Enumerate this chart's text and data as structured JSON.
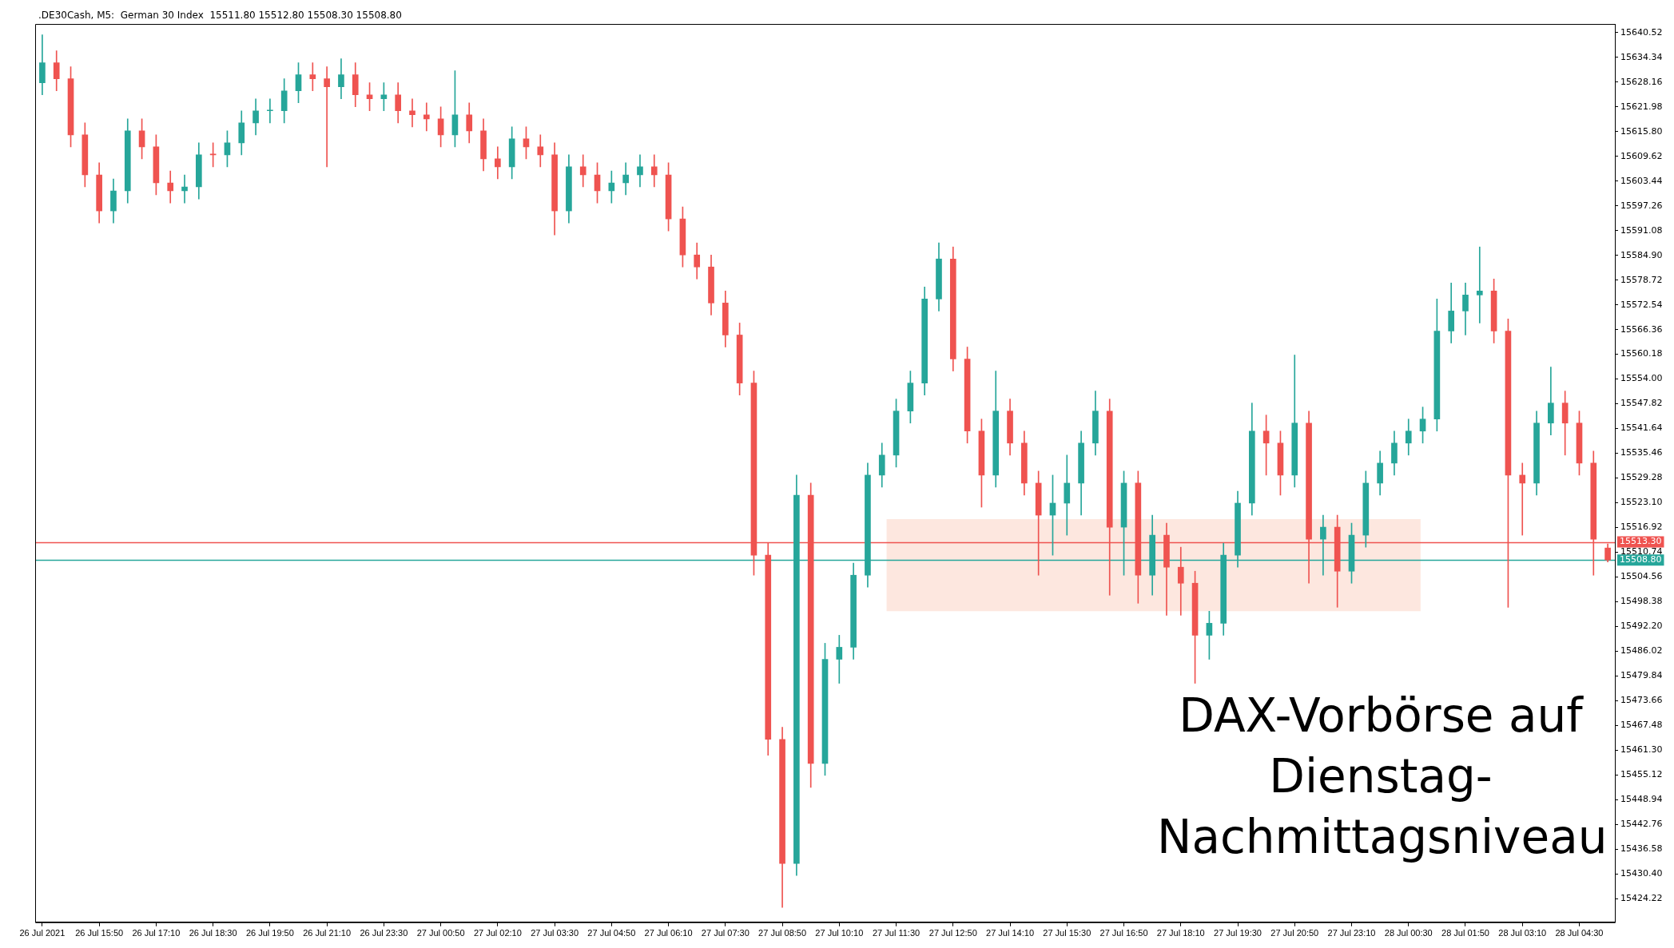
{
  "chart_data": {
    "type": "candlestick",
    "title": ".DE30Cash, M5:  German 30 Index  15511.80 15512.80 15508.30 15508.80",
    "annotations": [
      "DAX-Vorbörse auf Dienstag-Nachmittagsniveau"
    ],
    "categories": [
      "26 Jul 2021",
      null,
      null,
      null,
      "26 Jul 15:50",
      null,
      null,
      null,
      "26 Jul 17:10",
      null,
      null,
      null,
      "26 Jul 18:30",
      null,
      null,
      null,
      "26 Jul 19:50",
      null,
      null,
      null,
      "26 Jul 21:10",
      null,
      null,
      null,
      "26 Jul 23:30",
      null,
      null,
      null,
      "27 Jul 00:50",
      null,
      null,
      null,
      "27 Jul 02:10",
      null,
      null,
      null,
      "27 Jul 03:30",
      null,
      null,
      null,
      "27 Jul 04:50",
      null,
      null,
      null,
      "27 Jul 06:10",
      null,
      null,
      null,
      "27 Jul 07:30",
      null,
      null,
      null,
      "27 Jul 08:50",
      null,
      null,
      null,
      "27 Jul 10:10",
      null,
      null,
      null,
      "27 Jul 11:30",
      null,
      null,
      null,
      "27 Jul 12:50",
      null,
      null,
      null,
      "27 Jul 14:10",
      null,
      null,
      null,
      "27 Jul 15:30",
      null,
      null,
      null,
      "27 Jul 16:50",
      null,
      null,
      null,
      "27 Jul 18:10",
      null,
      null,
      null,
      "27 Jul 19:30",
      null,
      null,
      null,
      "27 Jul 20:50",
      null,
      null,
      null,
      "27 Jul 23:10",
      null,
      null,
      null,
      "28 Jul 00:30",
      null,
      null,
      null,
      "28 Jul 01:50",
      null,
      null,
      null,
      "28 Jul 03:10",
      null,
      null,
      null,
      "28 Jul 04:30",
      null,
      null
    ],
    "ohlc": [
      [
        15628,
        15640,
        15625,
        15633
      ],
      [
        15633,
        15636,
        15626,
        15629
      ],
      [
        15629,
        15632,
        15612,
        15615
      ],
      [
        15615,
        15618,
        15602,
        15605
      ],
      [
        15605,
        15608,
        15593,
        15596
      ],
      [
        15596,
        15604,
        15593,
        15601
      ],
      [
        15601,
        15619,
        15598,
        15616
      ],
      [
        15616,
        15619,
        15609,
        15612
      ],
      [
        15612,
        15615,
        15600,
        15603
      ],
      [
        15603,
        15606,
        15598,
        15601
      ],
      [
        15601,
        15605,
        15598,
        15602
      ],
      [
        15602,
        15613,
        15599,
        15610
      ],
      [
        15610,
        15613,
        15607,
        15610
      ],
      [
        15610,
        15616,
        15607,
        15613
      ],
      [
        15613,
        15621,
        15610,
        15618
      ],
      [
        15618,
        15624,
        15615,
        15621
      ],
      [
        15621,
        15624,
        15618,
        15621
      ],
      [
        15621,
        15629,
        15618,
        15626
      ],
      [
        15626,
        15633,
        15623,
        15630
      ],
      [
        15630,
        15633,
        15626,
        15629
      ],
      [
        15629,
        15632,
        15607,
        15627
      ],
      [
        15627,
        15634,
        15624,
        15630
      ],
      [
        15630,
        15633,
        15622,
        15625
      ],
      [
        15625,
        15628,
        15621,
        15624
      ],
      [
        15624,
        15628,
        15621,
        15625
      ],
      [
        15625,
        15628,
        15618,
        15621
      ],
      [
        15621,
        15624,
        15617,
        15620
      ],
      [
        15620,
        15623,
        15616,
        15619
      ],
      [
        15619,
        15622,
        15612,
        15615
      ],
      [
        15615,
        15631,
        15612,
        15620
      ],
      [
        15620,
        15623,
        15613,
        15616
      ],
      [
        15616,
        15619,
        15606,
        15609
      ],
      [
        15609,
        15612,
        15604,
        15607
      ],
      [
        15607,
        15617,
        15604,
        15614
      ],
      [
        15614,
        15617,
        15609,
        15612
      ],
      [
        15612,
        15615,
        15607,
        15610
      ],
      [
        15610,
        15613,
        15590,
        15596
      ],
      [
        15596,
        15610,
        15593,
        15607
      ],
      [
        15607,
        15610,
        15602,
        15605
      ],
      [
        15605,
        15608,
        15598,
        15601
      ],
      [
        15601,
        15606,
        15598,
        15603
      ],
      [
        15603,
        15608,
        15600,
        15605
      ],
      [
        15605,
        15610,
        15602,
        15607
      ],
      [
        15607,
        15610,
        15602,
        15605
      ],
      [
        15605,
        15608,
        15591,
        15594
      ],
      [
        15594,
        15597,
        15582,
        15585
      ],
      [
        15585,
        15588,
        15579,
        15582
      ],
      [
        15582,
        15585,
        15570,
        15573
      ],
      [
        15573,
        15576,
        15562,
        15565
      ],
      [
        15565,
        15568,
        15550,
        15553
      ],
      [
        15553,
        15556,
        15505,
        15510
      ],
      [
        15510,
        15513,
        15460,
        15464
      ],
      [
        15464,
        15467,
        15422,
        15433
      ],
      [
        15433,
        15530,
        15430,
        15525
      ],
      [
        15525,
        15528,
        15452,
        15458
      ],
      [
        15458,
        15488,
        15455,
        15484
      ],
      [
        15484,
        15490,
        15478,
        15487
      ],
      [
        15487,
        15508,
        15484,
        15505
      ],
      [
        15505,
        15533,
        15502,
        15530
      ],
      [
        15530,
        15538,
        15527,
        15535
      ],
      [
        15535,
        15549,
        15532,
        15546
      ],
      [
        15546,
        15556,
        15543,
        15553
      ],
      [
        15553,
        15577,
        15550,
        15574
      ],
      [
        15574,
        15588,
        15571,
        15584
      ],
      [
        15584,
        15587,
        15556,
        15559
      ],
      [
        15559,
        15562,
        15538,
        15541
      ],
      [
        15541,
        15544,
        15522,
        15530
      ],
      [
        15530,
        15556,
        15527,
        15546
      ],
      [
        15546,
        15549,
        15535,
        15538
      ],
      [
        15538,
        15541,
        15525,
        15528
      ],
      [
        15528,
        15531,
        15505,
        15520
      ],
      [
        15520,
        15530,
        15510,
        15523
      ],
      [
        15523,
        15535,
        15515,
        15528
      ],
      [
        15528,
        15541,
        15520,
        15538
      ],
      [
        15538,
        15551,
        15535,
        15546
      ],
      [
        15546,
        15549,
        15500,
        15517
      ],
      [
        15517,
        15531,
        15505,
        15528
      ],
      [
        15528,
        15531,
        15498,
        15505
      ],
      [
        15505,
        15520,
        15500,
        15515
      ],
      [
        15515,
        15518,
        15495,
        15507
      ],
      [
        15507,
        15512,
        15495,
        15503
      ],
      [
        15503,
        15506,
        15478,
        15490
      ],
      [
        15490,
        15496,
        15484,
        15493
      ],
      [
        15493,
        15513,
        15490,
        15510
      ],
      [
        15510,
        15526,
        15507,
        15523
      ],
      [
        15523,
        15548,
        15520,
        15541
      ],
      [
        15541,
        15545,
        15530,
        15538
      ],
      [
        15538,
        15541,
        15525,
        15530
      ],
      [
        15530,
        15560,
        15527,
        15543
      ],
      [
        15543,
        15546,
        15503,
        15514
      ],
      [
        15514,
        15520,
        15505,
        15517
      ],
      [
        15517,
        15520,
        15497,
        15506
      ],
      [
        15506,
        15518,
        15503,
        15515
      ],
      [
        15515,
        15531,
        15512,
        15528
      ],
      [
        15528,
        15536,
        15525,
        15533
      ],
      [
        15533,
        15541,
        15530,
        15538
      ],
      [
        15538,
        15544,
        15535,
        15541
      ],
      [
        15541,
        15547,
        15538,
        15544
      ],
      [
        15544,
        15574,
        15541,
        15566
      ],
      [
        15566,
        15578,
        15563,
        15571
      ],
      [
        15571,
        15578,
        15565,
        15575
      ],
      [
        15575,
        15587,
        15568,
        15576
      ],
      [
        15576,
        15579,
        15563,
        15566
      ],
      [
        15566,
        15569,
        15497,
        15530
      ],
      [
        15530,
        15533,
        15515,
        15528
      ],
      [
        15528,
        15546,
        15525,
        15543
      ],
      [
        15543,
        15557,
        15540,
        15548
      ],
      [
        15548,
        15551,
        15535,
        15543
      ],
      [
        15543,
        15546,
        15530,
        15533
      ],
      [
        15533,
        15536,
        15505,
        15514
      ],
      [
        15511.8,
        15512.8,
        15508.3,
        15508.8
      ]
    ],
    "colors": [
      "#26a69a",
      "#ef5350",
      "#ef5350",
      "#ef5350",
      "#ef5350",
      "#26a69a",
      "#26a69a",
      "#ef5350",
      "#ef5350",
      "#ef5350",
      "#26a69a",
      "#26a69a",
      "#ef5350",
      "#26a69a",
      "#26a69a",
      "#26a69a",
      "#26a69a",
      "#26a69a",
      "#26a69a",
      "#ef5350",
      "#ef5350",
      "#26a69a",
      "#ef5350",
      "#ef5350",
      "#26a69a",
      "#ef5350",
      "#ef5350",
      "#ef5350",
      "#ef5350",
      "#26a69a",
      "#ef5350",
      "#ef5350",
      "#ef5350",
      "#26a69a",
      "#ef5350",
      "#ef5350",
      "#ef5350",
      "#26a69a",
      "#ef5350",
      "#ef5350",
      "#26a69a",
      "#26a69a",
      "#26a69a",
      "#ef5350",
      "#ef5350",
      "#ef5350",
      "#ef5350",
      "#ef5350",
      "#ef5350",
      "#ef5350",
      "#ef5350",
      "#ef5350",
      "#ef5350",
      "#26a69a",
      "#ef5350",
      "#26a69a",
      "#26a69a",
      "#26a69a",
      "#26a69a",
      "#26a69a",
      "#26a69a",
      "#26a69a",
      "#26a69a",
      "#26a69a",
      "#ef5350",
      "#ef5350",
      "#ef5350",
      "#26a69a",
      "#ef5350",
      "#ef5350",
      "#ef5350",
      "#26a69a",
      "#26a69a",
      "#26a69a",
      "#26a69a",
      "#ef5350",
      "#26a69a",
      "#ef5350",
      "#26a69a",
      "#ef5350",
      "#ef5350",
      "#ef5350",
      "#26a69a",
      "#26a69a",
      "#26a69a",
      "#26a69a",
      "#ef5350",
      "#ef5350",
      "#26a69a",
      "#ef5350",
      "#26a69a",
      "#ef5350",
      "#26a69a",
      "#26a69a",
      "#26a69a",
      "#26a69a",
      "#26a69a",
      "#26a69a",
      "#26a69a",
      "#26a69a",
      "#26a69a",
      "#26a69a",
      "#ef5350",
      "#ef5350",
      "#ef5350",
      "#26a69a",
      "#26a69a",
      "#ef5350",
      "#ef5350",
      "#ef5350",
      "#ef5350"
    ],
    "ylim": [
      15418.3,
      15642.7
    ],
    "yticks": [
      15424.22,
      {
        "value": 15430.4,
        "label": "15430.40"
      },
      15436.58,
      15442.76,
      15448.94,
      15455.12,
      {
        "value": 15461.3,
        "label": "15461.30"
      },
      15467.48,
      15473.66,
      15479.84,
      15486.02,
      {
        "value": 15492.2,
        "label": "15492.20"
      },
      15498.38,
      15504.56,
      15510.74,
      15516.92,
      {
        "value": 15523.1,
        "label": "15523.10"
      },
      15529.28,
      15535.46,
      15541.64,
      15547.82,
      {
        "value": 15554,
        "label": "15554.00"
      },
      15560.18,
      15566.36,
      15572.54,
      15578.72,
      {
        "value": 15584.9,
        "label": "15584.90"
      },
      15591.08,
      15597.26,
      15603.44,
      15609.62,
      {
        "value": 15615.8,
        "label": "15615.80"
      },
      15621.98,
      15628.16,
      15634.34,
      15640.52
    ],
    "ref_lines": [
      {
        "axis": "y",
        "value": 15513.3,
        "label": "15513.30",
        "color": "#ef5350"
      },
      {
        "axis": "y",
        "value": 15508.8,
        "label": "15508.80",
        "color": "#26a69a"
      }
    ],
    "bands": [
      {
        "axis": "y",
        "from": 15496,
        "to": 15519,
        "color": "#fde7df"
      }
    ]
  }
}
